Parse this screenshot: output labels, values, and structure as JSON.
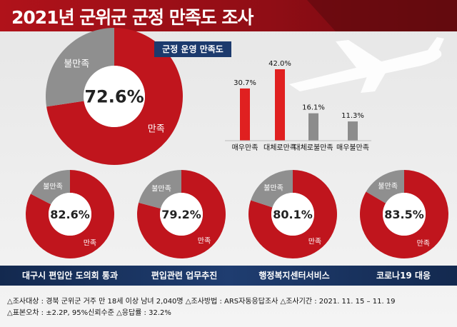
{
  "title": "2021년 군위군 군정 만족도 조사",
  "main_tag": "군정 운영 만족도",
  "colors": {
    "satisfied": "#c0151d",
    "dissatisfied": "#8f8f8f",
    "bar_red": "#e02020",
    "bar_gray": "#8c8c8c",
    "navy": "#1c3a6d"
  },
  "chart_data": [
    {
      "type": "pie",
      "title": "군정 운영 만족도",
      "center_label": "72.6%",
      "slices": [
        {
          "label": "만족",
          "value": 72.6
        },
        {
          "label": "불만족",
          "value": 27.4
        }
      ]
    },
    {
      "type": "bar",
      "categories": [
        "매우만족",
        "대체로만족",
        "대체로불만족",
        "매우불만족"
      ],
      "values": [
        30.7,
        42.0,
        16.1,
        11.3
      ],
      "value_labels": [
        "30.7%",
        "42.0%",
        "16.1%",
        "11.3%"
      ],
      "ylim": [
        0,
        42.0
      ]
    },
    {
      "type": "pie",
      "caption": "대구시 편입안 도의회 통과",
      "center_label": "82.6%",
      "slices": [
        {
          "label": "만족",
          "value": 82.6
        },
        {
          "label": "불만족",
          "value": 17.4
        }
      ]
    },
    {
      "type": "pie",
      "caption": "편입관련 업무추진",
      "center_label": "79.2%",
      "slices": [
        {
          "label": "만족",
          "value": 79.2
        },
        {
          "label": "불만족",
          "value": 20.8
        }
      ]
    },
    {
      "type": "pie",
      "caption": "행정복지센터서비스",
      "center_label": "80.1%",
      "slices": [
        {
          "label": "만족",
          "value": 80.1
        },
        {
          "label": "불만족",
          "value": 19.9
        }
      ]
    },
    {
      "type": "pie",
      "caption": "코로나19 대응",
      "center_label": "83.5%",
      "slices": [
        {
          "label": "만족",
          "value": 83.5
        },
        {
          "label": "불만족",
          "value": 16.5
        }
      ]
    }
  ],
  "footer": {
    "line1": "△조사대상 : 경북 군위군 거주 만 18세 이상 남녀 2,040명  △조사방법 : ARS자동응답조사  △조사기간 : 2021. 11. 15 – 11. 19",
    "line2": "△표본오차 : ±2.2P, 95%신뢰수준  △응답률 : 32.2%"
  }
}
